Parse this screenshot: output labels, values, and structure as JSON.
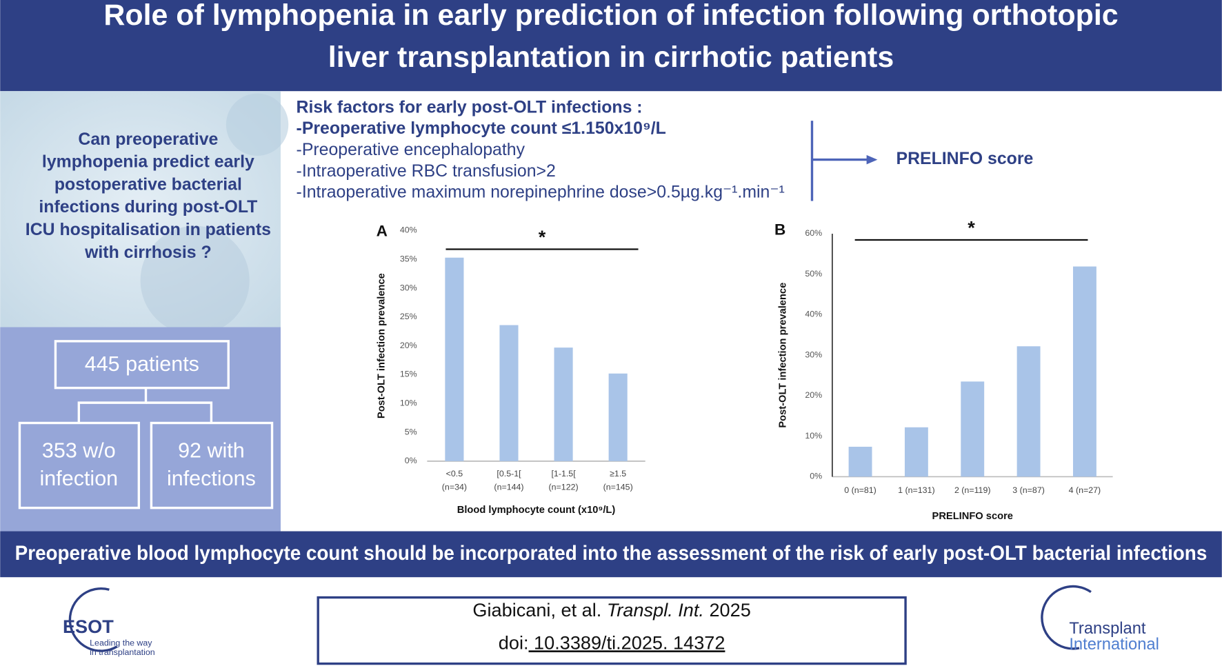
{
  "header": {
    "title_lines": [
      "Role of lymphopenia in early prediction of infection following orthotopic",
      "liver transplantation in cirrhotic patients"
    ]
  },
  "question": {
    "lines": [
      "Can preoperative",
      "lymphopenia predict early",
      "postoperative bacterial",
      "infections during post-OLT",
      "ICU hospitalisation in patients",
      "with cirrhosis ?"
    ]
  },
  "flow": {
    "total": "445 patients",
    "without": [
      "353 w/o",
      "infection"
    ],
    "with": [
      "92 with",
      "infections"
    ]
  },
  "risk_factors": {
    "heading": "Risk factors for early post-OLT infections :",
    "items": [
      "-Preoperative lymphocyte count ≤1.150x10⁹/L",
      "-Preoperative encephalopathy",
      "-Intraoperative RBC transfusion>2",
      "-Intraoperative maximum norepinephrine dose>0.5µg.kg⁻¹.min⁻¹"
    ],
    "result": "PRELINFO score"
  },
  "chart_data": [
    {
      "type": "bar",
      "panel": "A",
      "annotation": "*",
      "x_label": "Blood lymphocyte count (x10⁹/L)",
      "y_label": "Post-OLT infection prevalence",
      "categories": [
        "<0.5 (n=34)",
        "[0.5-1[ (n=144)",
        "[1-1.5[ (n=122)",
        "≥1.5 (n=145)"
      ],
      "values": [
        35.3,
        23.6,
        19.7,
        15.2
      ],
      "color": "#a9c4e8",
      "ylim": [
        0,
        40
      ],
      "yticks": [
        {
          "value": 0,
          "label": "0%"
        },
        {
          "value": 5,
          "label": "5%"
        },
        {
          "value": 10,
          "label": "10%"
        },
        {
          "value": 15,
          "label": "15%"
        },
        {
          "value": 20,
          "label": "20%"
        },
        {
          "value": 25,
          "label": "25%"
        },
        {
          "value": 30,
          "label": "30%"
        },
        {
          "value": 35,
          "label": "35%"
        },
        {
          "value": 40,
          "label": "40%"
        }
      ]
    },
    {
      "type": "bar",
      "panel": "B",
      "annotation": "*",
      "x_label": "PRELINFO score",
      "y_label": "Post-OLT infection prevalence",
      "categories": [
        "0 (n=81)",
        "1 (n=131)",
        "2 (n=119)",
        "3 (n=87)",
        "4 (n=27)"
      ],
      "values": [
        7.4,
        12.2,
        23.5,
        32.2,
        51.9
      ],
      "color": "#a9c4e8",
      "ylim": [
        0,
        60
      ],
      "yticks": [
        {
          "value": 0,
          "label": "0%"
        },
        {
          "value": 10,
          "label": "10%"
        },
        {
          "value": 20,
          "label": "20%"
        },
        {
          "value": 30,
          "label": "30%"
        },
        {
          "value": 40,
          "label": "40%"
        },
        {
          "value": 50,
          "label": "50%"
        },
        {
          "value": 60,
          "label": "60%"
        }
      ]
    }
  ],
  "conclusion": "Preoperative blood lymphocyte count should be incorporated into the assessment of the risk of early post-OLT bacterial infections",
  "citation": {
    "authors": "Giabicani, et al.",
    "journal": "Transpl. Int.",
    "year": "2025",
    "doi_label": "doi:",
    "doi": "10.3389/ti.2025. 14372"
  },
  "logos": {
    "esot": "ESOT",
    "esot_tagline": [
      "Leading the way",
      "in transplantation"
    ],
    "journal": [
      "Transplant",
      "International"
    ]
  }
}
